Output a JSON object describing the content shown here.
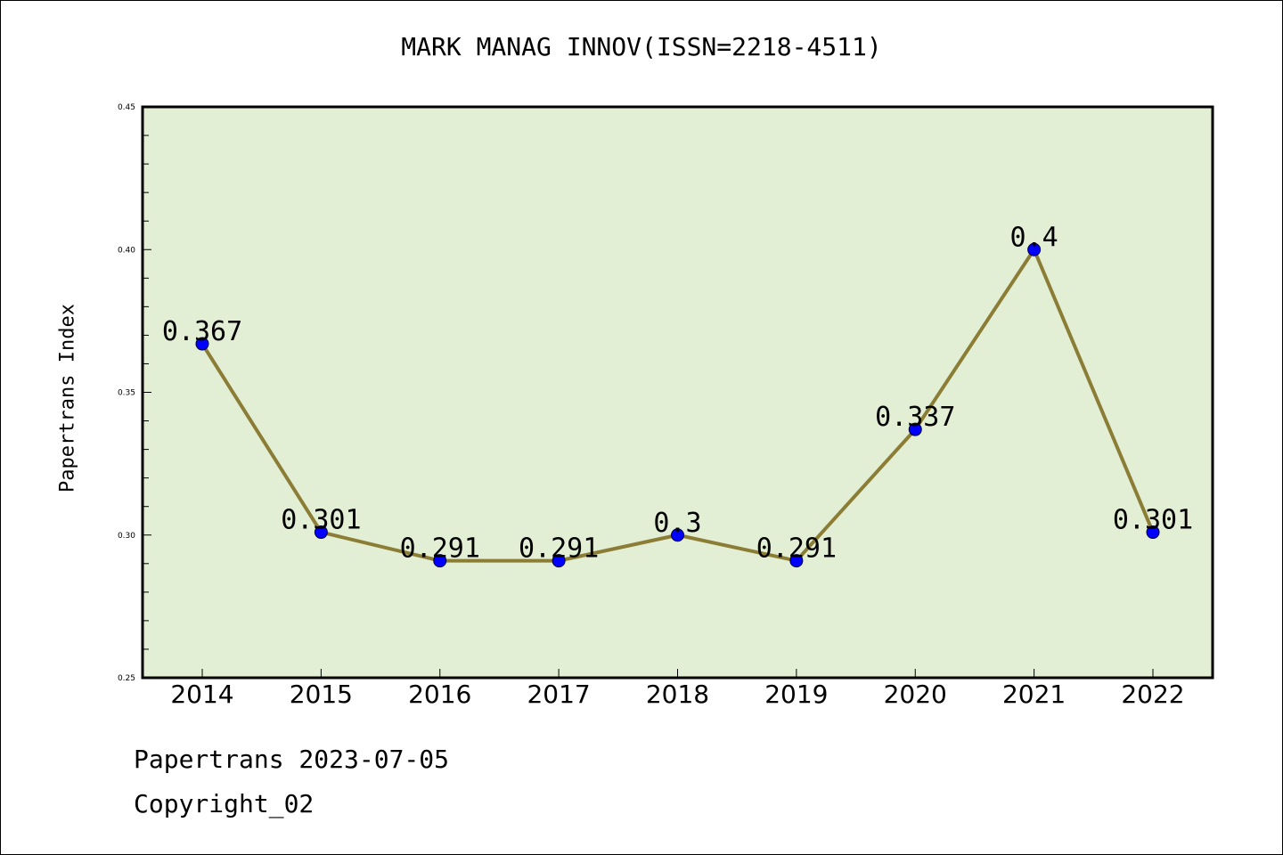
{
  "chart_data": {
    "type": "line",
    "title": "MARK MANAG INNOV(ISSN=2218-4511)",
    "xlabel": "",
    "ylabel": "Papertrans Index",
    "categories": [
      "2014",
      "2015",
      "2016",
      "2017",
      "2018",
      "2019",
      "2020",
      "2021",
      "2022"
    ],
    "series": [
      {
        "values": [
          0.367,
          0.301,
          0.291,
          0.291,
          0.3,
          0.291,
          0.337,
          0.4,
          0.301
        ],
        "labels": [
          "0.367",
          "0.301",
          "0.291",
          "0.291",
          "0.3",
          "0.291",
          "0.337",
          "0.4",
          "0.301"
        ]
      }
    ],
    "ylim": [
      0.25,
      0.45
    ],
    "yticks": [
      "0.25",
      "0.30",
      "0.35",
      "0.40",
      "0.45"
    ],
    "grid": false,
    "legend": "none"
  },
  "footer": {
    "line1": "Papertrans 2023-07-05",
    "line2": "Copyright_02"
  },
  "colors": {
    "plot_background": "#e2efd4",
    "line": "#8b7d35",
    "marker": "#0000ff",
    "axis": "#000000"
  }
}
